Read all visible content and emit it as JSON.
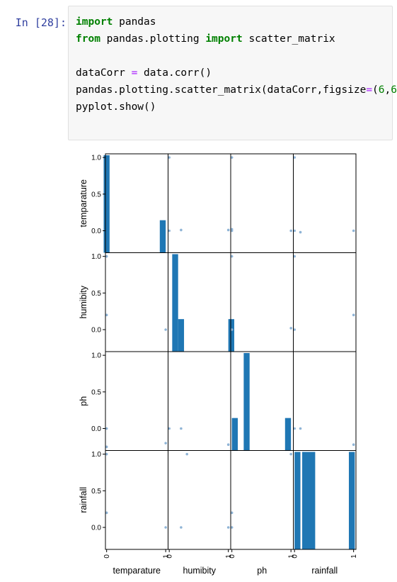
{
  "prompt": "In [28]:",
  "code_lines": [
    [
      {
        "t": "import",
        "c": "kw"
      },
      {
        "t": " pandas",
        "c": ""
      }
    ],
    [
      {
        "t": "from",
        "c": "kw"
      },
      {
        "t": " pandas.plotting ",
        "c": ""
      },
      {
        "t": "import",
        "c": "kw"
      },
      {
        "t": " scatter_matrix",
        "c": ""
      }
    ],
    [],
    [
      {
        "t": "dataCorr ",
        "c": ""
      },
      {
        "t": "=",
        "c": "op"
      },
      {
        "t": " data.corr()",
        "c": ""
      }
    ],
    [
      {
        "t": "pandas.plotting.scatter_matrix(dataCorr,figsize",
        "c": ""
      },
      {
        "t": "=",
        "c": "op"
      },
      {
        "t": "(",
        "c": ""
      },
      {
        "t": "6",
        "c": "num"
      },
      {
        "t": ",",
        "c": ""
      },
      {
        "t": "6",
        "c": "num"
      },
      {
        "t": "))",
        "c": ""
      }
    ],
    [
      {
        "t": "pyplot.show()",
        "c": ""
      }
    ]
  ],
  "colors": {
    "bar": "#1f77b4",
    "point": "#8fb4d6",
    "prompt": "#303f9f"
  },
  "chart_data": {
    "type": "scatter_matrix",
    "variables": [
      "temparature",
      "humibity",
      "ph",
      "rainfall"
    ],
    "y_ticks": [
      [
        "0.0",
        "0.5",
        "1.0"
      ],
      [
        "0.0",
        "0.5",
        "1.0"
      ],
      [
        "0.0",
        "0.5",
        "1.0"
      ],
      [
        "0.0",
        "0.5",
        "1.0"
      ]
    ],
    "x_ticks": [
      [
        "0",
        "1"
      ],
      [
        "0",
        "1"
      ],
      [
        "0",
        "1"
      ],
      [
        "0",
        "1"
      ]
    ],
    "histograms": [
      {
        "bins": [
          [
            -0.05,
            0.05,
            3
          ],
          [
            0.9,
            1.0,
            1
          ]
        ]
      },
      {
        "bins": [
          [
            0.05,
            0.15,
            3
          ],
          [
            0.15,
            0.25,
            1
          ],
          [
            1.0,
            1.1,
            1
          ]
        ]
      },
      {
        "bins": [
          [
            0.0,
            0.1,
            1
          ],
          [
            0.2,
            0.3,
            3
          ],
          [
            0.9,
            1.0,
            1
          ]
        ]
      },
      {
        "bins": [
          [
            0.0,
            0.1,
            1
          ],
          [
            0.13,
            0.35,
            1
          ],
          [
            0.92,
            1.02,
            1
          ]
        ]
      }
    ],
    "scatter": [
      {
        "row": 0,
        "col": 1,
        "points": [
          [
            0,
            0.0
          ],
          [
            0.2,
            0.01
          ],
          [
            1,
            0.01
          ],
          [
            0,
            1.0
          ]
        ]
      },
      {
        "row": 0,
        "col": 2,
        "points": [
          [
            0,
            0.0
          ],
          [
            0,
            0.02
          ],
          [
            1,
            0.0
          ],
          [
            0,
            1.0
          ]
        ]
      },
      {
        "row": 0,
        "col": 3,
        "points": [
          [
            0,
            0.0
          ],
          [
            0.1,
            -0.02
          ],
          [
            1,
            0.0
          ],
          [
            0,
            1.0
          ]
        ]
      },
      {
        "row": 1,
        "col": 0,
        "points": [
          [
            0,
            0.2
          ],
          [
            0,
            1.0
          ],
          [
            1,
            0.0
          ]
        ]
      },
      {
        "row": 1,
        "col": 2,
        "points": [
          [
            0,
            0.0
          ],
          [
            0,
            1.0
          ],
          [
            1,
            0.02
          ]
        ]
      },
      {
        "row": 1,
        "col": 3,
        "points": [
          [
            0,
            0.0
          ],
          [
            0,
            1.0
          ],
          [
            1,
            0.2
          ]
        ]
      },
      {
        "row": 2,
        "col": 0,
        "points": [
          [
            0,
            0.0
          ],
          [
            0,
            -0.25
          ],
          [
            1,
            -0.2
          ]
        ]
      },
      {
        "row": 2,
        "col": 1,
        "points": [
          [
            0,
            0.0
          ],
          [
            0.2,
            0.0
          ],
          [
            1,
            -0.22
          ]
        ]
      },
      {
        "row": 2,
        "col": 3,
        "points": [
          [
            0,
            0.0
          ],
          [
            0.1,
            0.0
          ],
          [
            1,
            -0.22
          ]
        ]
      },
      {
        "row": 3,
        "col": 0,
        "points": [
          [
            0,
            0.2
          ],
          [
            0,
            1.0
          ],
          [
            1,
            0.0
          ]
        ]
      },
      {
        "row": 3,
        "col": 1,
        "points": [
          [
            0.2,
            0.0
          ],
          [
            0.3,
            1.0
          ],
          [
            1,
            0.0
          ]
        ]
      },
      {
        "row": 3,
        "col": 2,
        "points": [
          [
            0,
            0.0
          ],
          [
            0,
            0.2
          ],
          [
            1,
            1.0
          ]
        ]
      }
    ]
  }
}
